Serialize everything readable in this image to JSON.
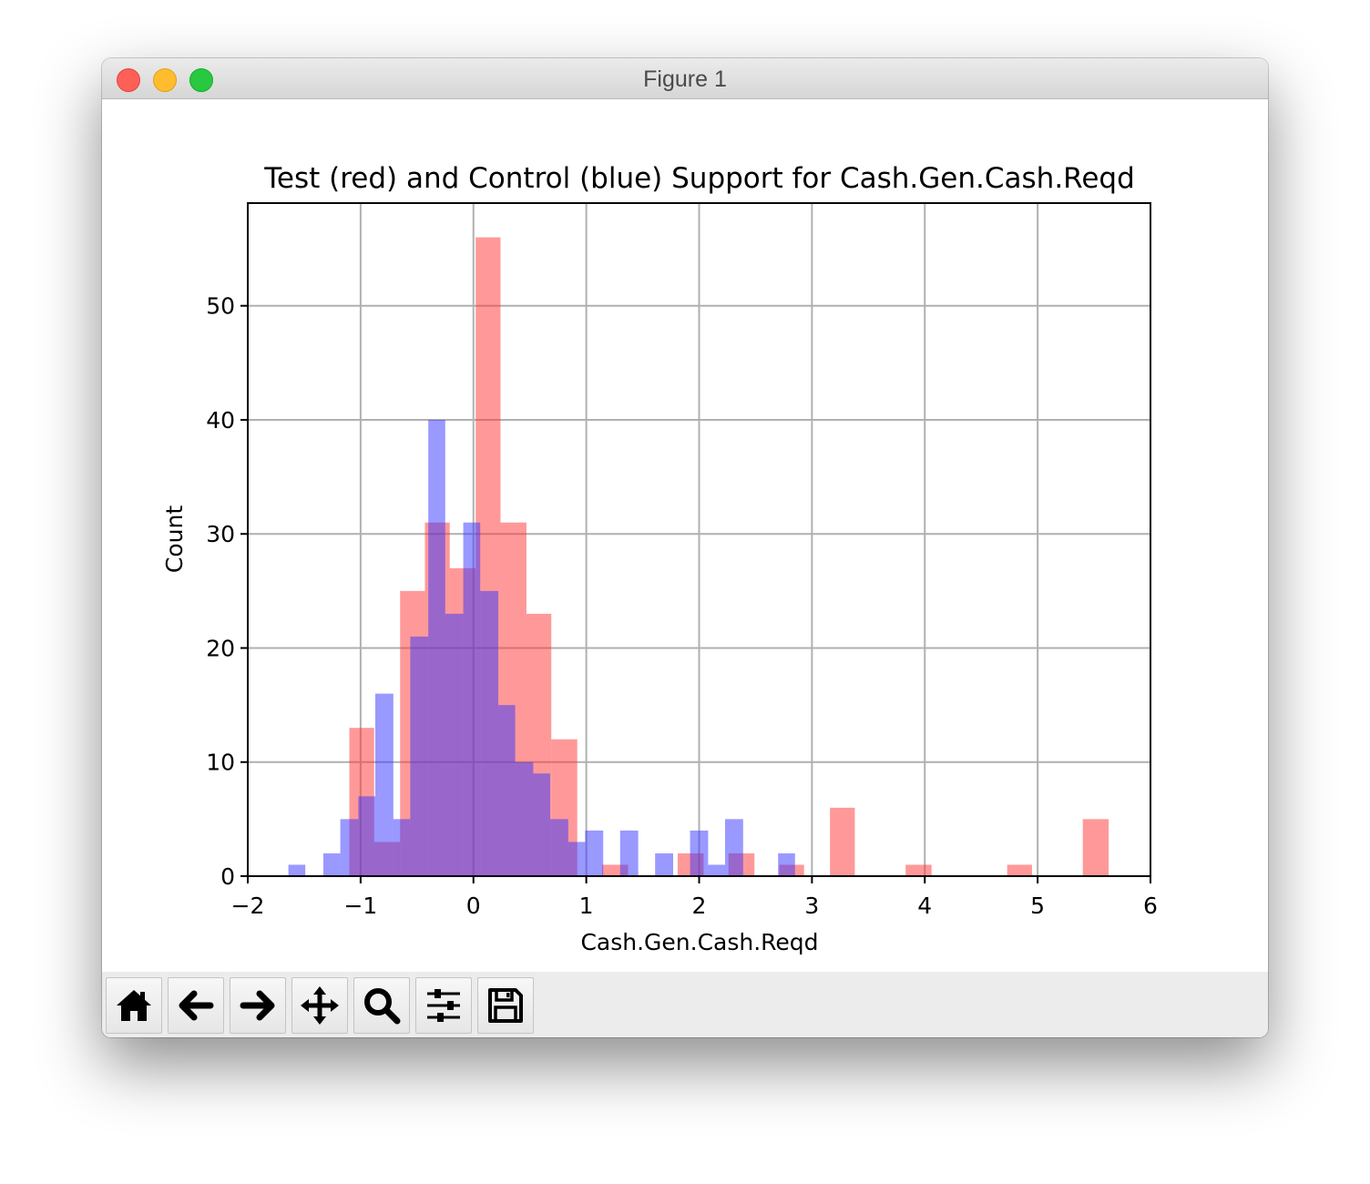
{
  "window": {
    "title": "Figure 1"
  },
  "toolbar": {
    "buttons": [
      {
        "name": "home-button",
        "icon": "home-icon"
      },
      {
        "name": "back-button",
        "icon": "arrow-left-icon"
      },
      {
        "name": "forward-button",
        "icon": "arrow-right-icon"
      },
      {
        "name": "pan-button",
        "icon": "move-icon"
      },
      {
        "name": "zoom-button",
        "icon": "magnifier-icon"
      },
      {
        "name": "configure-subplots-button",
        "icon": "sliders-icon"
      },
      {
        "name": "save-button",
        "icon": "floppy-disk-icon"
      }
    ]
  },
  "colors": {
    "test": "#ff3333",
    "control": "#3333ff",
    "overlap": "#9060c8",
    "grid": "#b0b0b0"
  },
  "chart_data": {
    "type": "bar",
    "title": "Test (red) and Control (blue) Support for Cash.Gen.Cash.Reqd",
    "xlabel": "Cash.Gen.Cash.Reqd",
    "ylabel": "Count",
    "xlim": [
      -2,
      6
    ],
    "ylim": [
      0,
      59
    ],
    "xticks": [
      -2,
      -1,
      0,
      1,
      2,
      3,
      4,
      5,
      6
    ],
    "xtick_labels": [
      "−2",
      "−1",
      "0",
      "1",
      "2",
      "3",
      "4",
      "5",
      "6"
    ],
    "yticks": [
      0,
      10,
      20,
      30,
      40,
      50
    ],
    "ytick_labels": [
      "0",
      "10",
      "20",
      "30",
      "40",
      "50"
    ],
    "grid": true,
    "legend": "none",
    "series": [
      {
        "color": "#ff3333",
        "alpha": 0.5,
        "bins": [
          {
            "x0": -1.1,
            "x1": -0.88,
            "count": 13
          },
          {
            "x0": -0.88,
            "x1": -0.65,
            "count": 3
          },
          {
            "x0": -0.65,
            "x1": -0.43,
            "count": 25
          },
          {
            "x0": -0.43,
            "x1": -0.21,
            "count": 31
          },
          {
            "x0": -0.21,
            "x1": 0.02,
            "count": 27
          },
          {
            "x0": 0.02,
            "x1": 0.24,
            "count": 56
          },
          {
            "x0": 0.24,
            "x1": 0.47,
            "count": 31
          },
          {
            "x0": 0.47,
            "x1": 0.69,
            "count": 23
          },
          {
            "x0": 0.69,
            "x1": 0.92,
            "count": 12
          },
          {
            "x0": 0.92,
            "x1": 1.14,
            "count": 0
          },
          {
            "x0": 1.14,
            "x1": 1.37,
            "count": 1
          },
          {
            "x0": 1.37,
            "x1": 1.59,
            "count": 0
          },
          {
            "x0": 1.59,
            "x1": 1.81,
            "count": 0
          },
          {
            "x0": 1.81,
            "x1": 2.04,
            "count": 2
          },
          {
            "x0": 2.04,
            "x1": 2.26,
            "count": 0
          },
          {
            "x0": 2.26,
            "x1": 2.49,
            "count": 2
          },
          {
            "x0": 2.49,
            "x1": 2.71,
            "count": 0
          },
          {
            "x0": 2.71,
            "x1": 2.93,
            "count": 1
          },
          {
            "x0": 2.93,
            "x1": 3.16,
            "count": 0
          },
          {
            "x0": 3.16,
            "x1": 3.38,
            "count": 6
          },
          {
            "x0": 3.38,
            "x1": 3.61,
            "count": 0
          },
          {
            "x0": 3.61,
            "x1": 3.83,
            "count": 0
          },
          {
            "x0": 3.83,
            "x1": 4.06,
            "count": 1
          },
          {
            "x0": 4.06,
            "x1": 4.28,
            "count": 0
          },
          {
            "x0": 4.28,
            "x1": 4.5,
            "count": 0
          },
          {
            "x0": 4.5,
            "x1": 4.73,
            "count": 0
          },
          {
            "x0": 4.73,
            "x1": 4.95,
            "count": 1
          },
          {
            "x0": 4.95,
            "x1": 5.18,
            "count": 0
          },
          {
            "x0": 5.18,
            "x1": 5.4,
            "count": 0
          },
          {
            "x0": 5.4,
            "x1": 5.63,
            "count": 5
          }
        ]
      },
      {
        "color": "#3333ff",
        "alpha": 0.5,
        "bins": [
          {
            "x0": -1.64,
            "x1": -1.49,
            "count": 1
          },
          {
            "x0": -1.49,
            "x1": -1.33,
            "count": 0
          },
          {
            "x0": -1.33,
            "x1": -1.18,
            "count": 2
          },
          {
            "x0": -1.18,
            "x1": -1.02,
            "count": 5
          },
          {
            "x0": -1.02,
            "x1": -0.87,
            "count": 7
          },
          {
            "x0": -0.87,
            "x1": -0.71,
            "count": 16
          },
          {
            "x0": -0.71,
            "x1": -0.56,
            "count": 5
          },
          {
            "x0": -0.56,
            "x1": -0.4,
            "count": 21
          },
          {
            "x0": -0.4,
            "x1": -0.25,
            "count": 40
          },
          {
            "x0": -0.25,
            "x1": -0.09,
            "count": 23
          },
          {
            "x0": -0.09,
            "x1": 0.06,
            "count": 31
          },
          {
            "x0": 0.06,
            "x1": 0.22,
            "count": 25
          },
          {
            "x0": 0.22,
            "x1": 0.37,
            "count": 15
          },
          {
            "x0": 0.37,
            "x1": 0.53,
            "count": 10
          },
          {
            "x0": 0.53,
            "x1": 0.68,
            "count": 9
          },
          {
            "x0": 0.68,
            "x1": 0.84,
            "count": 5
          },
          {
            "x0": 0.84,
            "x1": 0.99,
            "count": 3
          },
          {
            "x0": 0.99,
            "x1": 1.15,
            "count": 4
          },
          {
            "x0": 1.15,
            "x1": 1.3,
            "count": 0
          },
          {
            "x0": 1.3,
            "x1": 1.46,
            "count": 4
          },
          {
            "x0": 1.46,
            "x1": 1.61,
            "count": 0
          },
          {
            "x0": 1.61,
            "x1": 1.77,
            "count": 2
          },
          {
            "x0": 1.77,
            "x1": 1.92,
            "count": 0
          },
          {
            "x0": 1.92,
            "x1": 2.08,
            "count": 4
          },
          {
            "x0": 2.08,
            "x1": 2.23,
            "count": 1
          },
          {
            "x0": 2.23,
            "x1": 2.39,
            "count": 5
          },
          {
            "x0": 2.39,
            "x1": 2.54,
            "count": 0
          },
          {
            "x0": 2.54,
            "x1": 2.7,
            "count": 0
          },
          {
            "x0": 2.7,
            "x1": 2.85,
            "count": 2
          }
        ]
      }
    ]
  }
}
